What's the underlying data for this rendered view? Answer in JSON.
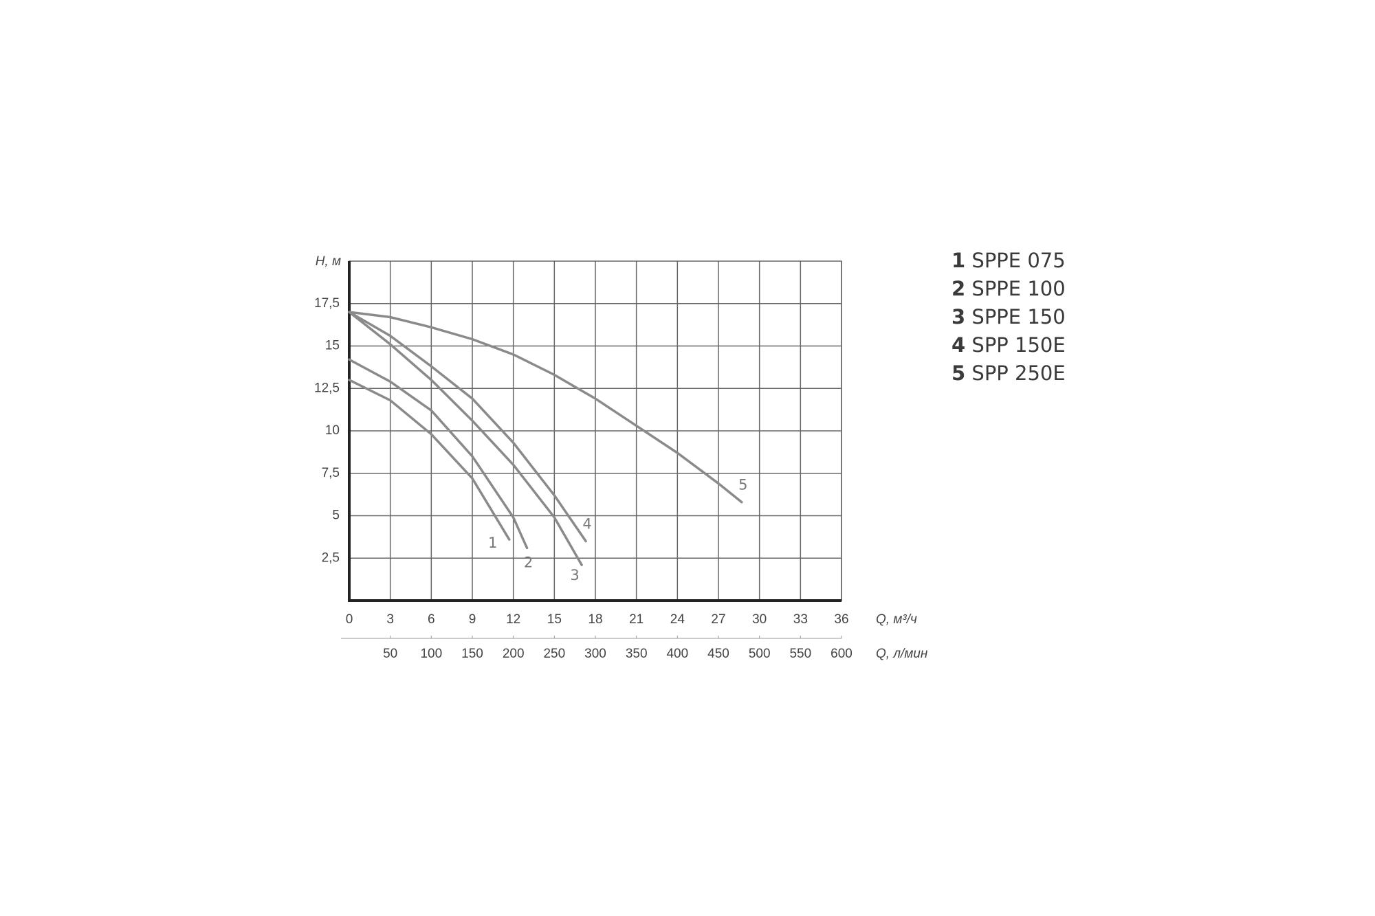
{
  "chart_data": {
    "type": "line",
    "y_label": "H, м",
    "x_label": "Q, м³/ч",
    "x2_label": "Q, л/мин",
    "xlim": [
      0,
      36
    ],
    "xticks": [
      0,
      3,
      6,
      9,
      12,
      15,
      18,
      21,
      24,
      27,
      30,
      33,
      36
    ],
    "x2lim": [
      0,
      600
    ],
    "x2ticks": [
      50,
      100,
      150,
      200,
      250,
      300,
      350,
      400,
      450,
      500,
      550,
      600
    ],
    "ylim": [
      0,
      20
    ],
    "yticks": [
      {
        "value": 2.5,
        "label": "2,5"
      },
      5,
      {
        "value": 7.5,
        "label": "7,5"
      },
      10,
      {
        "value": 12.5,
        "label": "12,5"
      },
      15,
      {
        "value": 17.5,
        "label": "17,5"
      }
    ],
    "grid": true,
    "series": [
      {
        "name": "1",
        "model": "SPPE 075",
        "color": "#8a8a8a",
        "x": [
          0,
          3,
          6,
          9,
          11.7
        ],
        "values": [
          13,
          11.8,
          9.8,
          7.2,
          3.6
        ]
      },
      {
        "name": "2",
        "model": "SPPE 100",
        "color": "#8a8a8a",
        "x": [
          0,
          3,
          6,
          9,
          12,
          13
        ],
        "values": [
          14.2,
          12.9,
          11.2,
          8.5,
          4.9,
          3.1
        ]
      },
      {
        "name": "3",
        "model": "SPPE 150",
        "color": "#8a8a8a",
        "x": [
          0,
          3,
          6,
          9,
          12,
          15,
          17
        ],
        "values": [
          17,
          15.1,
          13,
          10.6,
          8,
          4.9,
          2.1
        ]
      },
      {
        "name": "4",
        "model": "SPP 150E",
        "color": "#8a8a8a",
        "x": [
          0,
          3,
          6,
          9,
          12,
          15,
          17.3
        ],
        "values": [
          17,
          15.6,
          13.8,
          11.9,
          9.3,
          6.2,
          3.5
        ]
      },
      {
        "name": "5",
        "model": "SPP 250E",
        "color": "#8a8a8a",
        "x": [
          0,
          3,
          6,
          9,
          12,
          15,
          18,
          21,
          24,
          27,
          28.7
        ],
        "values": [
          17,
          16.7,
          16.1,
          15.4,
          14.5,
          13.3,
          11.9,
          10.3,
          8.7,
          6.9,
          5.8
        ]
      }
    ]
  }
}
